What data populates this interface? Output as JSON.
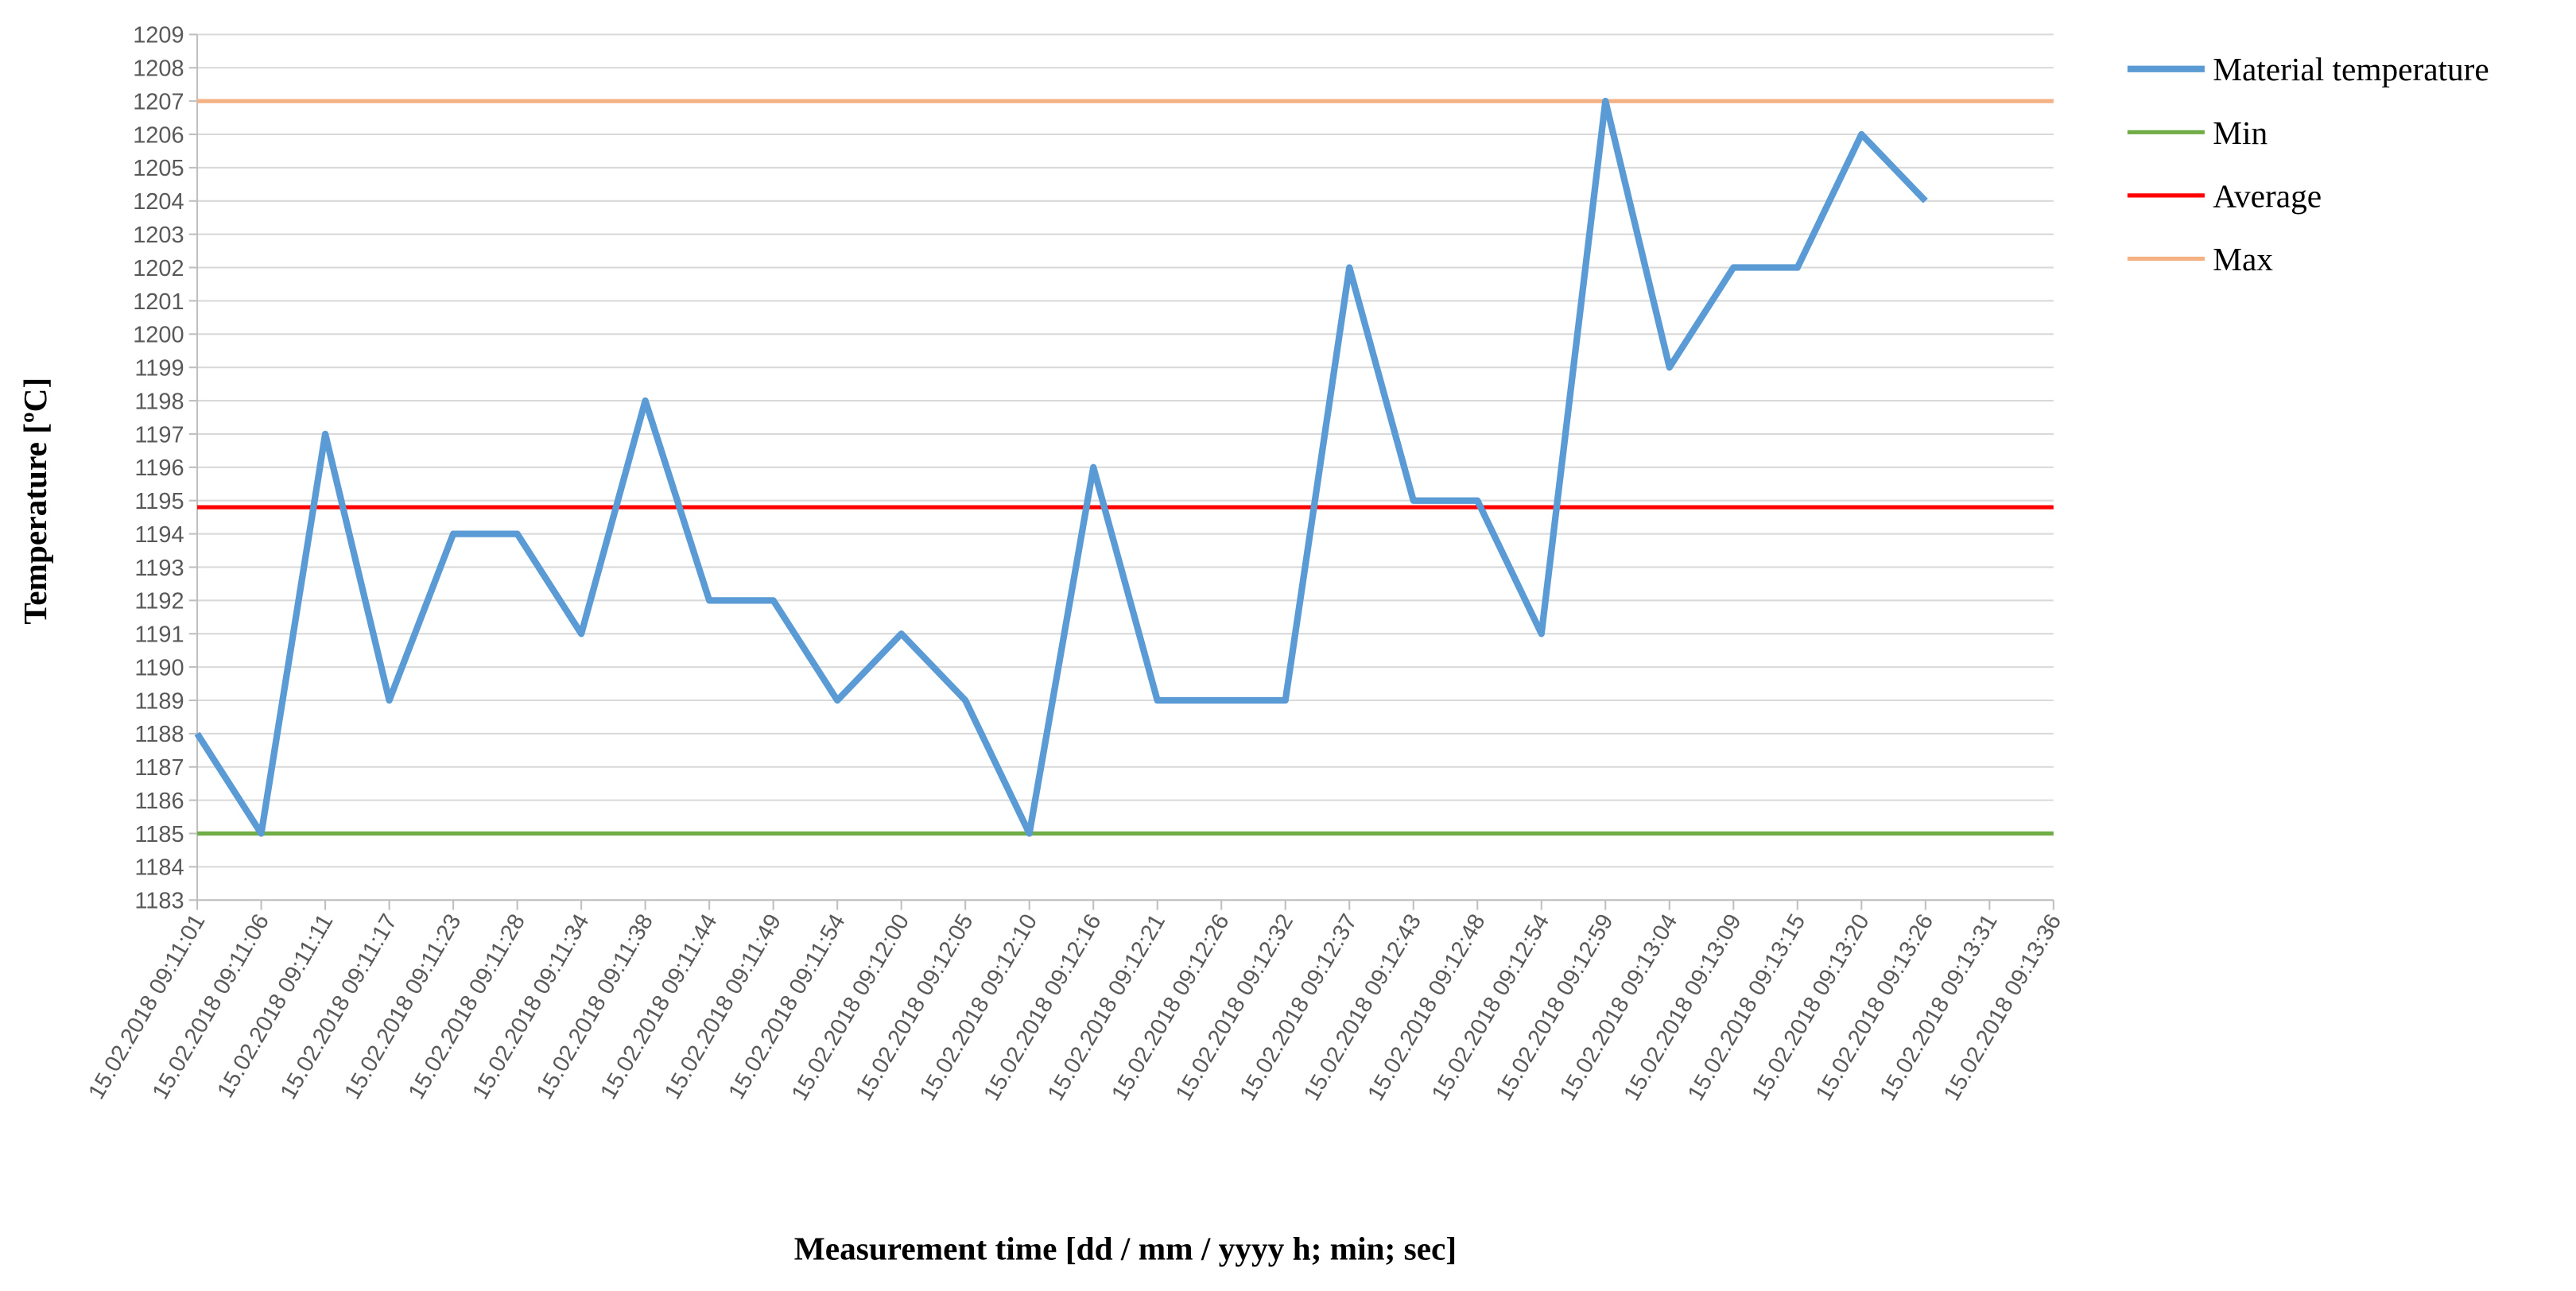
{
  "chart_data": {
    "type": "line",
    "y_label": "Temperature [ºC]",
    "x_label": "Measurement time [dd / mm / yyyy h; min; sec]",
    "categories": [
      "15.02.2018 09:11:01",
      "15.02.2018 09:11:06",
      "15.02.2018 09:11:11",
      "15.02.2018 09:11:17",
      "15.02.2018 09:11:23",
      "15.02.2018 09:11:28",
      "15.02.2018 09:11:34",
      "15.02.2018 09:11:38",
      "15.02.2018 09:11:44",
      "15.02.2018 09:11:49",
      "15.02.2018 09:11:54",
      "15.02.2018 09:12:00",
      "15.02.2018 09:12:05",
      "15.02.2018 09:12:10",
      "15.02.2018 09:12:16",
      "15.02.2018 09:12:21",
      "15.02.2018 09:12:26",
      "15.02.2018 09:12:32",
      "15.02.2018 09:12:37",
      "15.02.2018 09:12:43",
      "15.02.2018 09:12:48",
      "15.02.2018 09:12:54",
      "15.02.2018 09:12:59",
      "15.02.2018 09:13:04",
      "15.02.2018 09:13:09",
      "15.02.2018 09:13:15",
      "15.02.2018 09:13:20",
      "15.02.2018 09:13:26",
      "15.02.2018 09:13:31",
      "15.02.2018 09:13:36"
    ],
    "series": [
      {
        "name": "Material temperature",
        "color": "#5b9bd5",
        "values": [
          1188,
          1185,
          1197,
          1189,
          1194,
          1194,
          1191,
          1198,
          1192,
          1192,
          1189,
          1191,
          1189,
          1185,
          1196,
          1189,
          1189,
          1189,
          1202,
          1195,
          1195,
          1191,
          1207,
          1199,
          1202,
          1202,
          1206,
          1204,
          null,
          null
        ]
      },
      {
        "name": "Min",
        "color": "#70ad47",
        "values": [
          1185,
          1185,
          1185,
          1185,
          1185,
          1185,
          1185,
          1185,
          1185,
          1185,
          1185,
          1185,
          1185,
          1185,
          1185,
          1185,
          1185,
          1185,
          1185,
          1185,
          1185,
          1185,
          1185,
          1185,
          1185,
          1185,
          1185,
          1185,
          1185,
          1185
        ]
      },
      {
        "name": "Average",
        "color": "#ff0000",
        "values": [
          1194.8,
          1194.8,
          1194.8,
          1194.8,
          1194.8,
          1194.8,
          1194.8,
          1194.8,
          1194.8,
          1194.8,
          1194.8,
          1194.8,
          1194.8,
          1194.8,
          1194.8,
          1194.8,
          1194.8,
          1194.8,
          1194.8,
          1194.8,
          1194.8,
          1194.8,
          1194.8,
          1194.8,
          1194.8,
          1194.8,
          1194.8,
          1194.8,
          1194.8,
          1194.8
        ]
      },
      {
        "name": "Max",
        "color": "#f4b183",
        "values": [
          1207,
          1207,
          1207,
          1207,
          1207,
          1207,
          1207,
          1207,
          1207,
          1207,
          1207,
          1207,
          1207,
          1207,
          1207,
          1207,
          1207,
          1207,
          1207,
          1207,
          1207,
          1207,
          1207,
          1207,
          1207,
          1207,
          1207,
          1207,
          1207,
          1207
        ]
      }
    ],
    "ylim": [
      1183,
      1209
    ],
    "yticks": [
      1183,
      1184,
      1185,
      1186,
      1187,
      1188,
      1189,
      1190,
      1191,
      1192,
      1193,
      1194,
      1195,
      1196,
      1197,
      1198,
      1199,
      1200,
      1201,
      1202,
      1203,
      1204,
      1205,
      1206,
      1207,
      1208,
      1209
    ],
    "grid": true,
    "legend": "right"
  }
}
